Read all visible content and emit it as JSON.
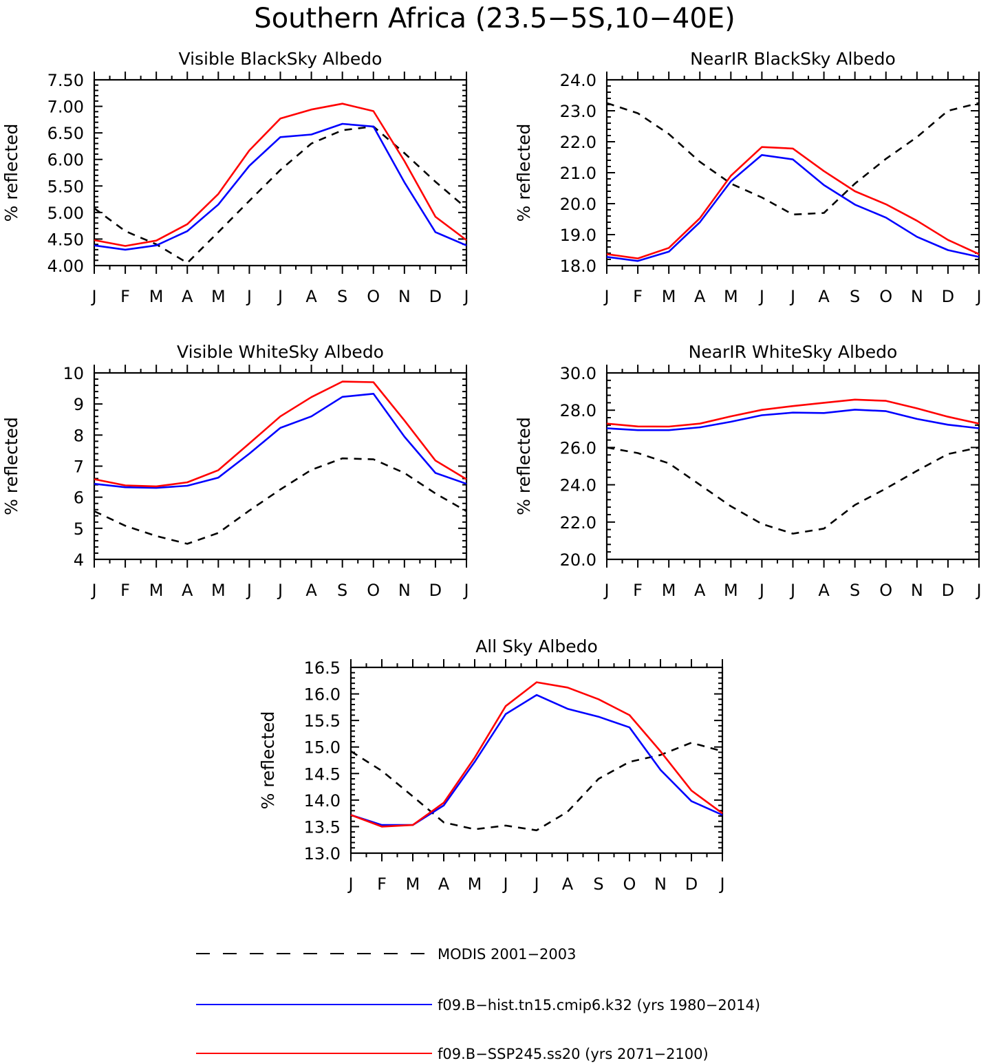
{
  "figure_title": "Southern Africa (23.5−5S,10−40E)",
  "colors": {
    "modis": "#000000",
    "hist": "#0000ff",
    "ssp": "#ff0000"
  },
  "legend": [
    {
      "key": "modis",
      "label": "MODIS 2001−2003",
      "style": "dashed"
    },
    {
      "key": "hist",
      "label": "f09.B−hist.tn15.cmip6.k32 (yrs 1980−2014)",
      "style": "solid"
    },
    {
      "key": "ssp",
      "label": "f09.B−SSP245.ss20 (yrs 2071−2100)",
      "style": "solid"
    }
  ],
  "chart_data": [
    {
      "type": "line",
      "title": "Visible BlackSky Albedo",
      "ylabel": "% reflected",
      "categories": [
        "J",
        "F",
        "M",
        "A",
        "M",
        "J",
        "J",
        "A",
        "S",
        "O",
        "N",
        "D",
        "J"
      ],
      "ylim": [
        4.0,
        7.5
      ],
      "yticks": [
        "4.00",
        "4.50",
        "5.00",
        "5.50",
        "6.00",
        "6.50",
        "7.00",
        "7.50"
      ],
      "ytick_values": [
        4.0,
        4.5,
        5.0,
        5.5,
        6.0,
        6.5,
        7.0,
        7.5
      ],
      "series": [
        {
          "key": "modis",
          "values": [
            5.08,
            4.65,
            4.4,
            4.05,
            4.63,
            5.22,
            5.8,
            6.3,
            6.55,
            6.62,
            6.12,
            5.58,
            5.08
          ]
        },
        {
          "key": "hist",
          "values": [
            4.38,
            4.3,
            4.38,
            4.65,
            5.15,
            5.88,
            6.42,
            6.47,
            6.67,
            6.62,
            5.57,
            4.63,
            4.38
          ]
        },
        {
          "key": "ssp",
          "values": [
            4.48,
            4.37,
            4.47,
            4.78,
            5.35,
            6.17,
            6.77,
            6.94,
            7.05,
            6.91,
            5.97,
            4.92,
            4.48
          ]
        }
      ]
    },
    {
      "type": "line",
      "title": "NearIR BlackSky Albedo",
      "ylabel": "% reflected",
      "categories": [
        "J",
        "F",
        "M",
        "A",
        "M",
        "J",
        "J",
        "A",
        "S",
        "O",
        "N",
        "D",
        "J"
      ],
      "ylim": [
        18.0,
        24.0
      ],
      "yticks": [
        "18.0",
        "19.0",
        "20.0",
        "21.0",
        "22.0",
        "23.0",
        "24.0"
      ],
      "ytick_values": [
        18,
        19,
        20,
        21,
        22,
        23,
        24
      ],
      "series": [
        {
          "key": "modis",
          "values": [
            23.25,
            22.92,
            22.25,
            21.35,
            20.65,
            20.2,
            19.65,
            19.7,
            20.65,
            21.45,
            22.15,
            23.0,
            23.25
          ]
        },
        {
          "key": "hist",
          "values": [
            18.28,
            18.15,
            18.45,
            19.4,
            20.72,
            21.57,
            21.43,
            20.6,
            19.97,
            19.55,
            18.93,
            18.5,
            18.28
          ]
        },
        {
          "key": "ssp",
          "values": [
            18.37,
            18.23,
            18.57,
            19.53,
            20.9,
            21.83,
            21.78,
            21.05,
            20.4,
            19.98,
            19.45,
            18.83,
            18.37
          ]
        }
      ]
    },
    {
      "type": "line",
      "title": "Visible WhiteSky Albedo",
      "ylabel": "% reflected",
      "categories": [
        "J",
        "F",
        "M",
        "A",
        "M",
        "J",
        "J",
        "A",
        "S",
        "O",
        "N",
        "D",
        "J"
      ],
      "ylim": [
        4,
        10
      ],
      "yticks": [
        "4",
        "5",
        "6",
        "7",
        "8",
        "9",
        "10"
      ],
      "ytick_values": [
        4,
        5,
        6,
        7,
        8,
        9,
        10
      ],
      "series": [
        {
          "key": "modis",
          "values": [
            5.55,
            5.08,
            4.75,
            4.5,
            4.85,
            5.57,
            6.25,
            6.88,
            7.25,
            7.22,
            6.78,
            6.12,
            5.55
          ]
        },
        {
          "key": "hist",
          "values": [
            6.43,
            6.32,
            6.3,
            6.37,
            6.63,
            7.4,
            8.23,
            8.6,
            9.23,
            9.33,
            7.95,
            6.78,
            6.43
          ]
        },
        {
          "key": "ssp",
          "values": [
            6.58,
            6.38,
            6.35,
            6.48,
            6.87,
            7.73,
            8.6,
            9.22,
            9.72,
            9.7,
            8.47,
            7.18,
            6.58
          ]
        }
      ]
    },
    {
      "type": "line",
      "title": "NearIR WhiteSky Albedo",
      "ylabel": "% reflected",
      "categories": [
        "J",
        "F",
        "M",
        "A",
        "M",
        "J",
        "J",
        "A",
        "S",
        "O",
        "N",
        "D",
        "J"
      ],
      "ylim": [
        20.0,
        30.0
      ],
      "yticks": [
        "20.0",
        "22.0",
        "24.0",
        "26.0",
        "28.0",
        "30.0"
      ],
      "ytick_values": [
        20,
        22,
        24,
        26,
        28,
        30
      ],
      "series": [
        {
          "key": "modis",
          "values": [
            26.0,
            25.7,
            25.15,
            24.0,
            22.85,
            21.9,
            21.38,
            21.65,
            22.92,
            23.8,
            24.75,
            25.65,
            26.0
          ]
        },
        {
          "key": "hist",
          "values": [
            27.03,
            26.93,
            26.93,
            27.08,
            27.38,
            27.73,
            27.87,
            27.85,
            28.03,
            27.95,
            27.53,
            27.22,
            27.03
          ]
        },
        {
          "key": "ssp",
          "values": [
            27.28,
            27.13,
            27.12,
            27.28,
            27.67,
            28.02,
            28.22,
            28.4,
            28.57,
            28.5,
            28.1,
            27.65,
            27.28
          ]
        }
      ]
    },
    {
      "type": "line",
      "title": "All Sky Albedo",
      "ylabel": "% reflected",
      "categories": [
        "J",
        "F",
        "M",
        "A",
        "M",
        "J",
        "J",
        "A",
        "S",
        "O",
        "N",
        "D",
        "J"
      ],
      "ylim": [
        13.0,
        16.5
      ],
      "yticks": [
        "13.0",
        "13.5",
        "14.0",
        "14.5",
        "15.0",
        "15.5",
        "16.0",
        "16.5"
      ],
      "ytick_values": [
        13,
        13.5,
        14,
        14.5,
        15,
        15.5,
        16,
        16.5
      ],
      "series": [
        {
          "key": "modis",
          "values": [
            14.92,
            14.55,
            14.07,
            13.58,
            13.45,
            13.52,
            13.43,
            13.78,
            14.4,
            14.72,
            14.85,
            15.08,
            14.92
          ]
        },
        {
          "key": "hist",
          "values": [
            13.72,
            13.53,
            13.53,
            13.9,
            14.72,
            15.62,
            15.98,
            15.72,
            15.57,
            15.37,
            14.57,
            13.98,
            13.72
          ]
        },
        {
          "key": "ssp",
          "values": [
            13.72,
            13.5,
            13.53,
            13.95,
            14.8,
            15.77,
            16.22,
            16.12,
            15.9,
            15.6,
            14.92,
            14.18,
            13.75
          ]
        }
      ]
    }
  ]
}
